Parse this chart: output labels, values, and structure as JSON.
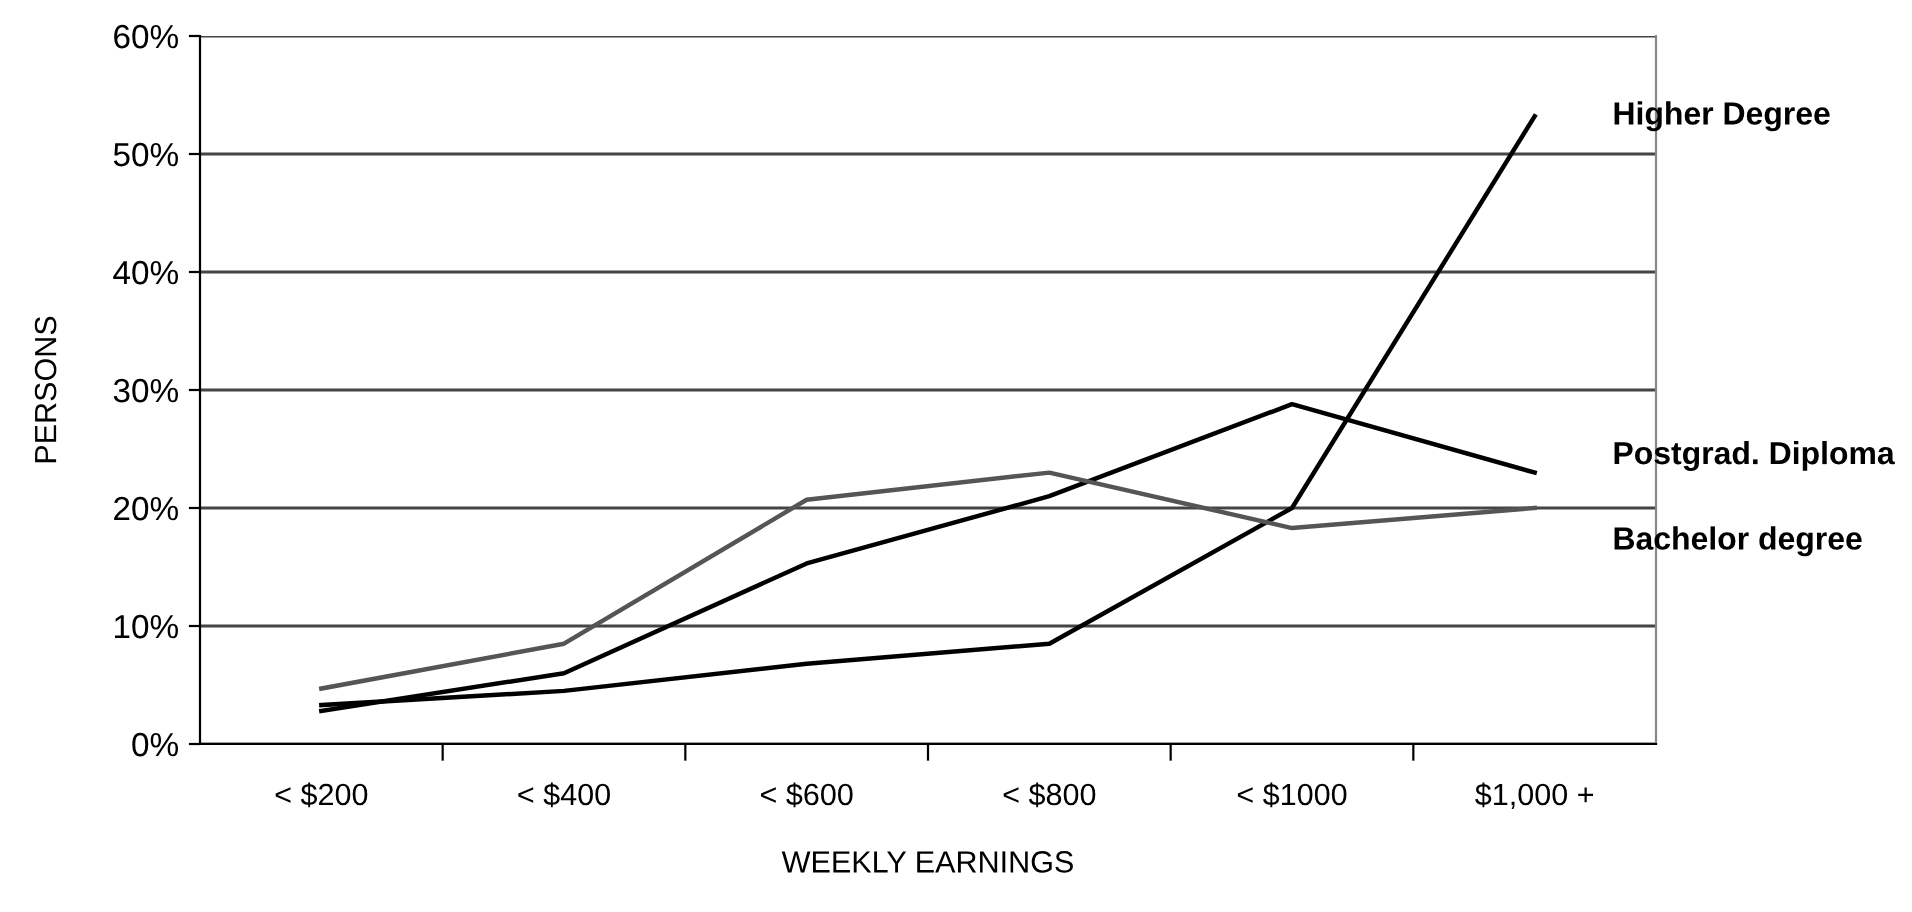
{
  "chart_data": {
    "type": "line",
    "xlabel": "WEEKLY EARNINGS",
    "ylabel": "PERSONS",
    "categories": [
      "< $200",
      "< $400",
      "< $600",
      "< $800",
      "< $1000",
      "$1,000 +"
    ],
    "series": [
      {
        "name": "Higher Degree",
        "color": "#000000",
        "values": [
          3.3,
          4.5,
          6.8,
          8.5,
          20.0,
          53.2
        ]
      },
      {
        "name": "Postgrad. Diploma",
        "color": "#000000",
        "values": [
          2.8,
          6.0,
          15.3,
          21.0,
          28.8,
          23.0
        ]
      },
      {
        "name": "Bachelor degree",
        "color": "#555555",
        "values": [
          4.7,
          8.5,
          20.7,
          23.0,
          18.3,
          20.0
        ]
      }
    ],
    "ylim": [
      0,
      60
    ],
    "yticks": [
      {
        "value": 0,
        "label": "0%"
      },
      {
        "value": 10,
        "label": "10%"
      },
      {
        "value": 20,
        "label": "20%"
      },
      {
        "value": 30,
        "label": "30%"
      },
      {
        "value": 40,
        "label": "40%"
      },
      {
        "value": 50,
        "label": "50%"
      },
      {
        "value": 60,
        "label": "60%"
      }
    ],
    "grid": "y",
    "legend": false,
    "marker": "none",
    "line_style": "solid"
  }
}
